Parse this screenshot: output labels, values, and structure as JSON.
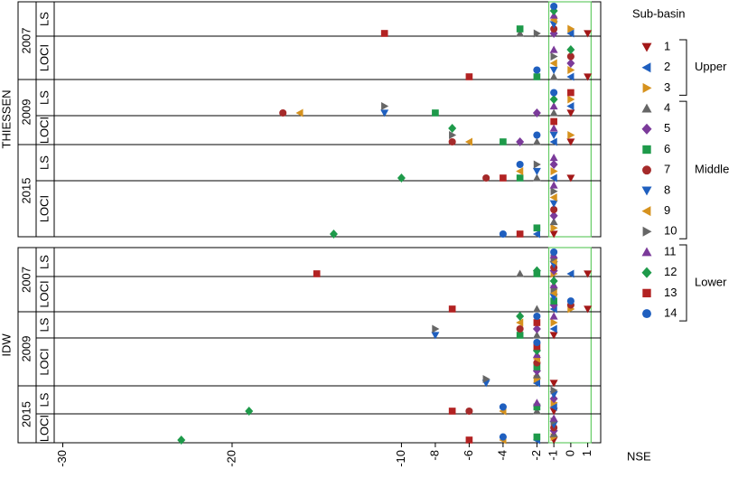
{
  "chart_data": {
    "type": "dot",
    "x_label": "NSE",
    "xlim": [
      -30.4,
      1.5
    ],
    "xticks": [
      -30,
      -20,
      -10,
      -8,
      -6,
      -4,
      -2,
      -1,
      0,
      1
    ],
    "highlight": [
      -1.3,
      1.2
    ],
    "legend_title": "Sub-basin",
    "panels": [
      {
        "name": "THIESSEN",
        "years": [
          {
            "name": "2007",
            "methods": [
              "LS",
              "LOCI"
            ]
          },
          {
            "name": "2009",
            "methods": [
              "LS",
              "LOCI"
            ]
          },
          {
            "name": "2015",
            "methods": [
              "LS",
              "LOCI"
            ]
          }
        ]
      },
      {
        "name": "IDW",
        "years": [
          {
            "name": "2007",
            "methods": [
              "LS",
              "LOCI"
            ]
          },
          {
            "name": "2009",
            "methods": [
              "LS",
              "LOCI"
            ]
          },
          {
            "name": "2015",
            "methods": [
              "LS",
              "LOCI"
            ]
          }
        ]
      }
    ],
    "series": [
      {
        "name": "1",
        "group": "Upper",
        "color": "#a31818",
        "marker": "tri-down",
        "values": [
          1,
          1,
          0,
          0,
          0,
          -1,
          1,
          1,
          -1,
          -1,
          -1,
          -1
        ]
      },
      {
        "name": "2",
        "group": "Upper",
        "color": "#1f5fbf",
        "marker": "tri-left",
        "values": [
          0,
          0,
          0,
          -1,
          -1,
          -2,
          0,
          -1,
          -1,
          -2,
          -1,
          -2
        ]
      },
      {
        "name": "3",
        "group": "Upper",
        "color": "#d6921e",
        "marker": "tri-right",
        "values": [
          0,
          0,
          0,
          0,
          -1,
          -1,
          -1,
          0,
          -1,
          -2,
          -1,
          -1
        ]
      },
      {
        "name": "4",
        "group": "Middle",
        "color": "#666666",
        "marker": "tri-up",
        "values": [
          -3,
          -1,
          -1,
          -2,
          -2,
          -1,
          -3,
          -2,
          -2,
          -2,
          -2,
          -1
        ]
      },
      {
        "name": "5",
        "group": "Middle",
        "color": "#7b3a9a",
        "marker": "diamond",
        "values": [
          -1,
          0,
          -2,
          -3,
          -1,
          -1,
          -1,
          -1,
          -2,
          -2,
          -1,
          -1
        ]
      },
      {
        "name": "6",
        "group": "Middle",
        "color": "#1e9a4a",
        "marker": "square",
        "values": [
          -3,
          -2,
          -8,
          -4,
          -3,
          -2,
          -2,
          -1,
          -3,
          -2,
          -2,
          -2
        ]
      },
      {
        "name": "7",
        "group": "Middle",
        "color": "#a52a2a",
        "marker": "circle",
        "values": [
          -1,
          0,
          -17,
          -7,
          -5,
          -1,
          -1,
          0,
          -3,
          -2,
          -6,
          -1
        ]
      },
      {
        "name": "8",
        "group": "Middle",
        "color": "#1f5fbf",
        "marker": "tri-down",
        "values": [
          -1,
          -1,
          -11,
          -1,
          -2,
          -1,
          -1,
          -1,
          -8,
          -5,
          -1,
          -1
        ]
      },
      {
        "name": "9",
        "group": "Middle",
        "color": "#d6921e",
        "marker": "tri-left",
        "values": [
          -1,
          -1,
          -16,
          -6,
          -3,
          -1,
          -1,
          -1,
          -3,
          -2,
          -4,
          -4
        ]
      },
      {
        "name": "10",
        "group": "Middle",
        "color": "#666666",
        "marker": "tri-right",
        "values": [
          -2,
          -1,
          -11,
          -7,
          -2,
          -1,
          -1,
          -1,
          -8,
          -5,
          -1,
          -1
        ]
      },
      {
        "name": "11",
        "group": "Lower",
        "color": "#7b3a9a",
        "marker": "tri-up",
        "values": [
          -1,
          -1,
          -1,
          -1,
          -1,
          -1,
          -1,
          -1,
          -1,
          -2,
          -2,
          -1
        ]
      },
      {
        "name": "12",
        "group": "Lower",
        "color": "#1e9a4a",
        "marker": "diamond",
        "values": [
          -1,
          0,
          -1,
          -7,
          -10,
          -14,
          -2,
          -1,
          -3,
          -2,
          -19,
          -23
        ]
      },
      {
        "name": "13",
        "group": "Lower",
        "color": "#b22222",
        "marker": "square",
        "values": [
          -11,
          -6,
          0,
          -1,
          -4,
          -3,
          -15,
          -7,
          -2,
          -2,
          -7,
          -6
        ]
      },
      {
        "name": "14",
        "group": "Lower",
        "color": "#1f5fbf",
        "marker": "circle",
        "values": [
          -1,
          -2,
          -1,
          -2,
          -3,
          -4,
          -1,
          0,
          -2,
          -2,
          -4,
          -4
        ]
      }
    ]
  }
}
